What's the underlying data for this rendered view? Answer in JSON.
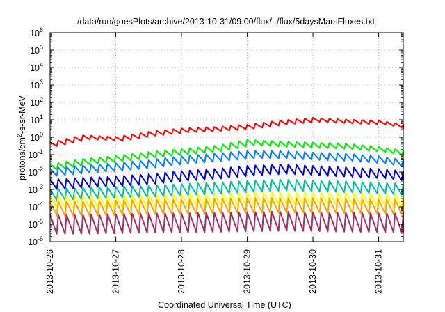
{
  "colors": {
    "background": "#ffffff",
    "axis": "#000000",
    "grid": "#a0a0a0"
  },
  "chart_data": {
    "type": "line",
    "title": "/data/run/goesPlots/archive/2013-10-31/09:00/flux/../flux/5daysMarsFluxes.txt",
    "xlabel": "Coordinated Universal Time (UTC)",
    "ylabel": {
      "prefix": "protons/cm",
      "superscript": "2",
      "suffix": "-s-sr-MeV"
    },
    "yscale": "log",
    "ylim": [
      1e-06,
      1000000.0
    ],
    "xlim": [
      "2013-10-26T00:00",
      "2013-10-31T09:00"
    ],
    "x_ticks": [
      "2013-10-26",
      "2013-10-27",
      "2013-10-28",
      "2013-10-29",
      "2013-10-30",
      "2013-10-31"
    ],
    "y_ticks": [
      {
        "base": "10",
        "exp": "-6"
      },
      {
        "base": "10",
        "exp": "-5"
      },
      {
        "base": "10",
        "exp": "-4"
      },
      {
        "base": "10",
        "exp": "-3"
      },
      {
        "base": "10",
        "exp": "-2"
      },
      {
        "base": "10",
        "exp": "-1"
      },
      {
        "base": "10",
        "exp": "0"
      },
      {
        "base": "10",
        "exp": "1"
      },
      {
        "base": "10",
        "exp": "2"
      },
      {
        "base": "10",
        "exp": "3"
      },
      {
        "base": "10",
        "exp": "4"
      },
      {
        "base": "10",
        "exp": "5"
      },
      {
        "base": "10",
        "exp": "6"
      }
    ],
    "grid": true,
    "legend": "none",
    "x": [
      "2013-10-26T00:00",
      "2013-10-26T12:00",
      "2013-10-27T00:00",
      "2013-10-27T12:00",
      "2013-10-28T00:00",
      "2013-10-28T12:00",
      "2013-10-29T00:00",
      "2013-10-29T12:00",
      "2013-10-30T00:00",
      "2013-10-30T12:00",
      "2013-10-31T00:00",
      "2013-10-31T09:00"
    ],
    "series": [
      {
        "color": "#ff0000",
        "values": [
          0.4,
          1.0,
          0.8,
          1.6,
          2.5,
          3.0,
          4.0,
          7.0,
          10,
          8,
          7,
          4.0
        ]
      },
      {
        "color": "#00ee00",
        "values": [
          0.02,
          0.04,
          0.06,
          0.1,
          0.15,
          0.22,
          0.5,
          0.4,
          0.35,
          0.3,
          0.2,
          0.12
        ]
      },
      {
        "color": "#0080ff",
        "values": [
          0.01,
          0.015,
          0.02,
          0.03,
          0.05,
          0.07,
          0.1,
          0.1,
          0.08,
          0.07,
          0.05,
          0.03
        ]
      },
      {
        "color": "#0000cc",
        "values": [
          0.002,
          0.0025,
          0.003,
          0.004,
          0.006,
          0.008,
          0.012,
          0.015,
          0.012,
          0.01,
          0.008,
          0.006
        ]
      },
      {
        "color": "#00c0a0",
        "values": [
          0.0005,
          0.0006,
          0.0007,
          0.0008,
          0.001,
          0.0012,
          0.0015,
          0.0018,
          0.0016,
          0.0014,
          0.0012,
          0.001
        ]
      },
      {
        "color": "#ffff00",
        "values": [
          0.0002,
          0.0002,
          0.0002,
          0.00022,
          0.00025,
          0.00025,
          0.0003,
          0.0003,
          0.0003,
          0.0003,
          0.00025,
          0.00022
        ]
      },
      {
        "color": "#ffa000",
        "values": [
          8e-05,
          8e-05,
          9e-05,
          0.0001,
          0.0001,
          0.00011,
          0.00012,
          0.00012,
          0.00012,
          0.00011,
          0.0001,
          0.0001
        ]
      },
      {
        "color": "#a03060",
        "values": [
          1e-05,
          1e-05,
          1.1e-05,
          1.2e-05,
          1.2e-05,
          1.3e-05,
          1.4e-05,
          1.5e-05,
          1.4e-05,
          1.3e-05,
          1.2e-05,
          1.2e-05
        ]
      }
    ]
  }
}
